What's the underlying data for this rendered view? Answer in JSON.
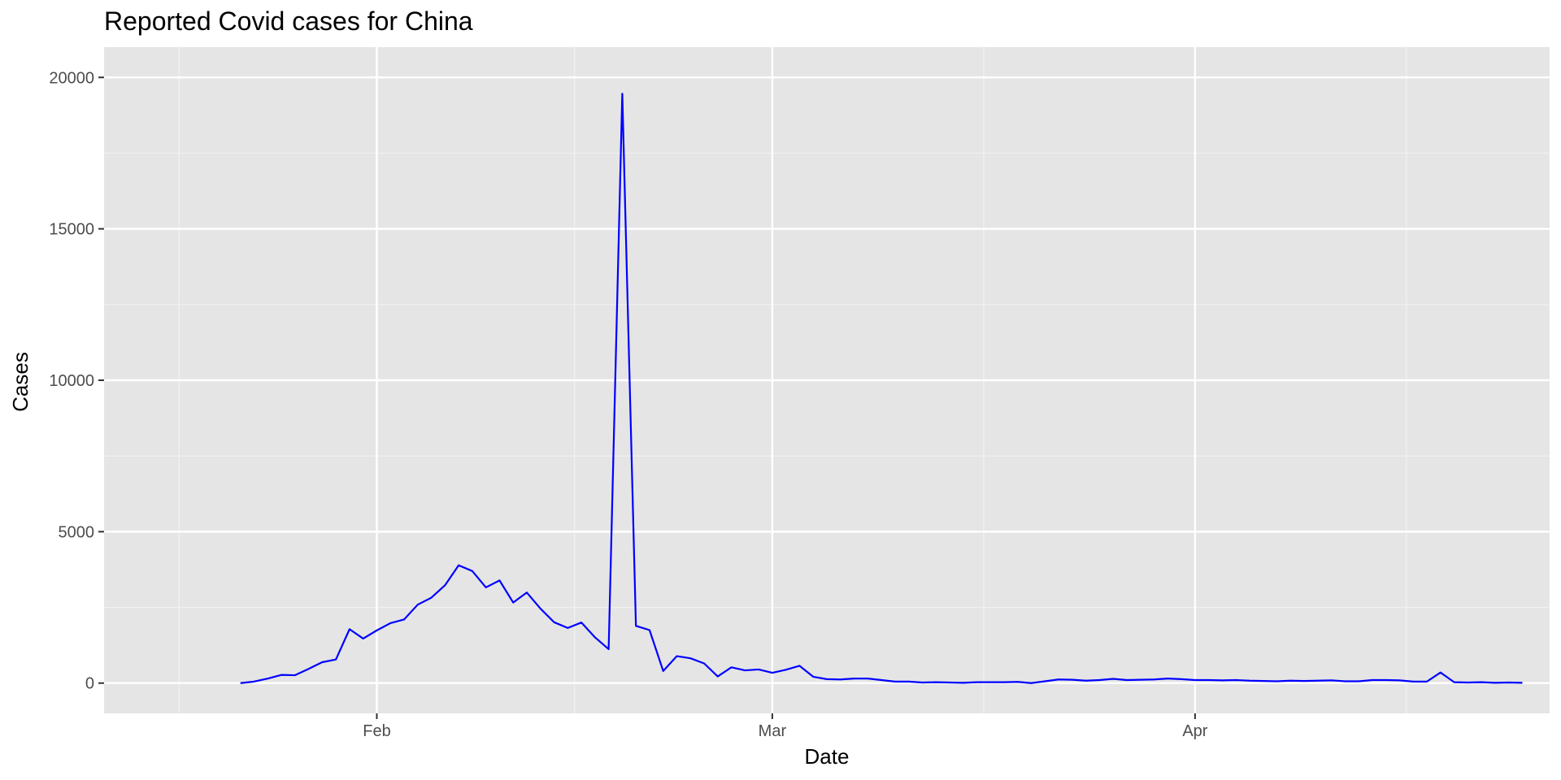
{
  "chart_data": {
    "type": "line",
    "title": "Reported Covid cases for China",
    "xlabel": "Date",
    "ylabel": "Cases",
    "ylim": [
      -1000,
      21000
    ],
    "xlim": [
      "2020-01-12",
      "2020-04-27"
    ],
    "y_ticks": [
      0,
      5000,
      10000,
      15000,
      20000
    ],
    "y_tick_labels": [
      "0",
      "5000",
      "10000",
      "15000",
      "20000"
    ],
    "x_ticks": [
      "2020-02-01",
      "2020-03-01",
      "2020-04-01"
    ],
    "x_tick_labels": [
      "Feb",
      "Mar",
      "Apr"
    ],
    "grid": true,
    "series": [
      {
        "color": "#0000ff",
        "x": [
          "2020-01-22",
          "2020-01-23",
          "2020-01-24",
          "2020-01-25",
          "2020-01-26",
          "2020-01-27",
          "2020-01-28",
          "2020-01-29",
          "2020-01-30",
          "2020-01-31",
          "2020-02-01",
          "2020-02-02",
          "2020-02-03",
          "2020-02-04",
          "2020-02-05",
          "2020-02-06",
          "2020-02-07",
          "2020-02-08",
          "2020-02-09",
          "2020-02-10",
          "2020-02-11",
          "2020-02-12",
          "2020-02-13",
          "2020-02-14",
          "2020-02-15",
          "2020-02-16",
          "2020-02-17",
          "2020-02-18",
          "2020-02-19",
          "2020-02-20",
          "2020-02-21",
          "2020-02-22",
          "2020-02-23",
          "2020-02-24",
          "2020-02-25",
          "2020-02-26",
          "2020-02-27",
          "2020-02-28",
          "2020-02-29",
          "2020-03-01",
          "2020-03-02",
          "2020-03-03",
          "2020-03-04",
          "2020-03-05",
          "2020-03-06",
          "2020-03-07",
          "2020-03-08",
          "2020-03-09",
          "2020-03-10",
          "2020-03-11",
          "2020-03-12",
          "2020-03-13",
          "2020-03-14",
          "2020-03-15",
          "2020-03-16",
          "2020-03-17",
          "2020-03-18",
          "2020-03-19",
          "2020-03-20",
          "2020-03-21",
          "2020-03-22",
          "2020-03-23",
          "2020-03-24",
          "2020-03-25",
          "2020-03-26",
          "2020-03-27",
          "2020-03-28",
          "2020-03-29",
          "2020-03-30",
          "2020-03-31",
          "2020-04-01",
          "2020-04-02",
          "2020-04-03",
          "2020-04-04",
          "2020-04-05",
          "2020-04-06",
          "2020-04-07",
          "2020-04-08",
          "2020-04-09",
          "2020-04-10",
          "2020-04-11",
          "2020-04-12",
          "2020-04-13",
          "2020-04-14",
          "2020-04-15",
          "2020-04-16",
          "2020-04-17",
          "2020-04-18",
          "2020-04-19",
          "2020-04-20",
          "2020-04-21",
          "2020-04-22",
          "2020-04-23",
          "2020-04-24",
          "2020-04-25"
        ],
        "values": [
          0,
          50,
          150,
          270,
          260,
          470,
          690,
          780,
          1780,
          1470,
          1740,
          1980,
          2100,
          2590,
          2820,
          3230,
          3890,
          3700,
          3160,
          3390,
          2660,
          2990,
          2460,
          2010,
          1820,
          2000,
          1510,
          1120,
          19460,
          1890,
          1750,
          400,
          890,
          820,
          650,
          220,
          520,
          420,
          450,
          340,
          440,
          570,
          210,
          130,
          120,
          150,
          150,
          100,
          50,
          50,
          20,
          30,
          20,
          10,
          30,
          30,
          30,
          40,
          0,
          60,
          120,
          110,
          80,
          100,
          140,
          100,
          110,
          120,
          150,
          130,
          100,
          100,
          90,
          100,
          80,
          70,
          60,
          80,
          70,
          80,
          90,
          60,
          60,
          100,
          100,
          90,
          50,
          50,
          350,
          30,
          20,
          30,
          10,
          20,
          10
        ]
      }
    ]
  }
}
